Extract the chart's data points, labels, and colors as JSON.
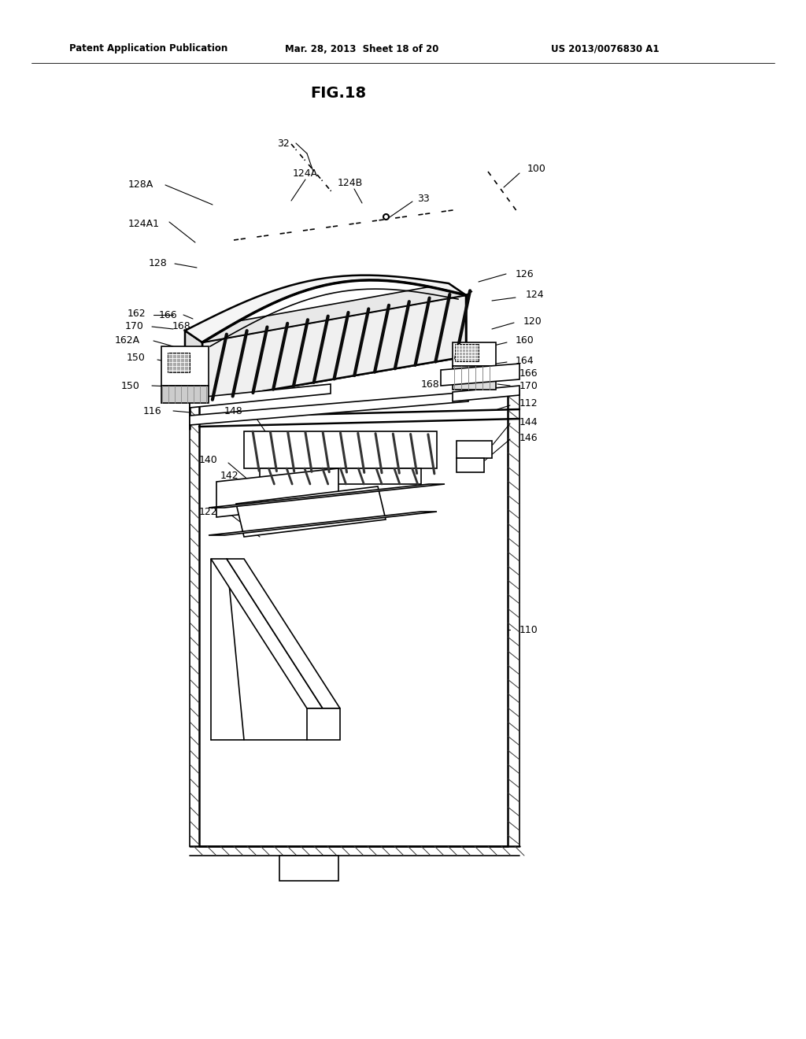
{
  "header_left": "Patent Application Publication",
  "header_mid": "Mar. 28, 2013  Sheet 18 of 20",
  "header_right": "US 2013/0076830 A1",
  "fig_title": "FIG.18",
  "bg_color": "#ffffff",
  "line_color": "#000000"
}
